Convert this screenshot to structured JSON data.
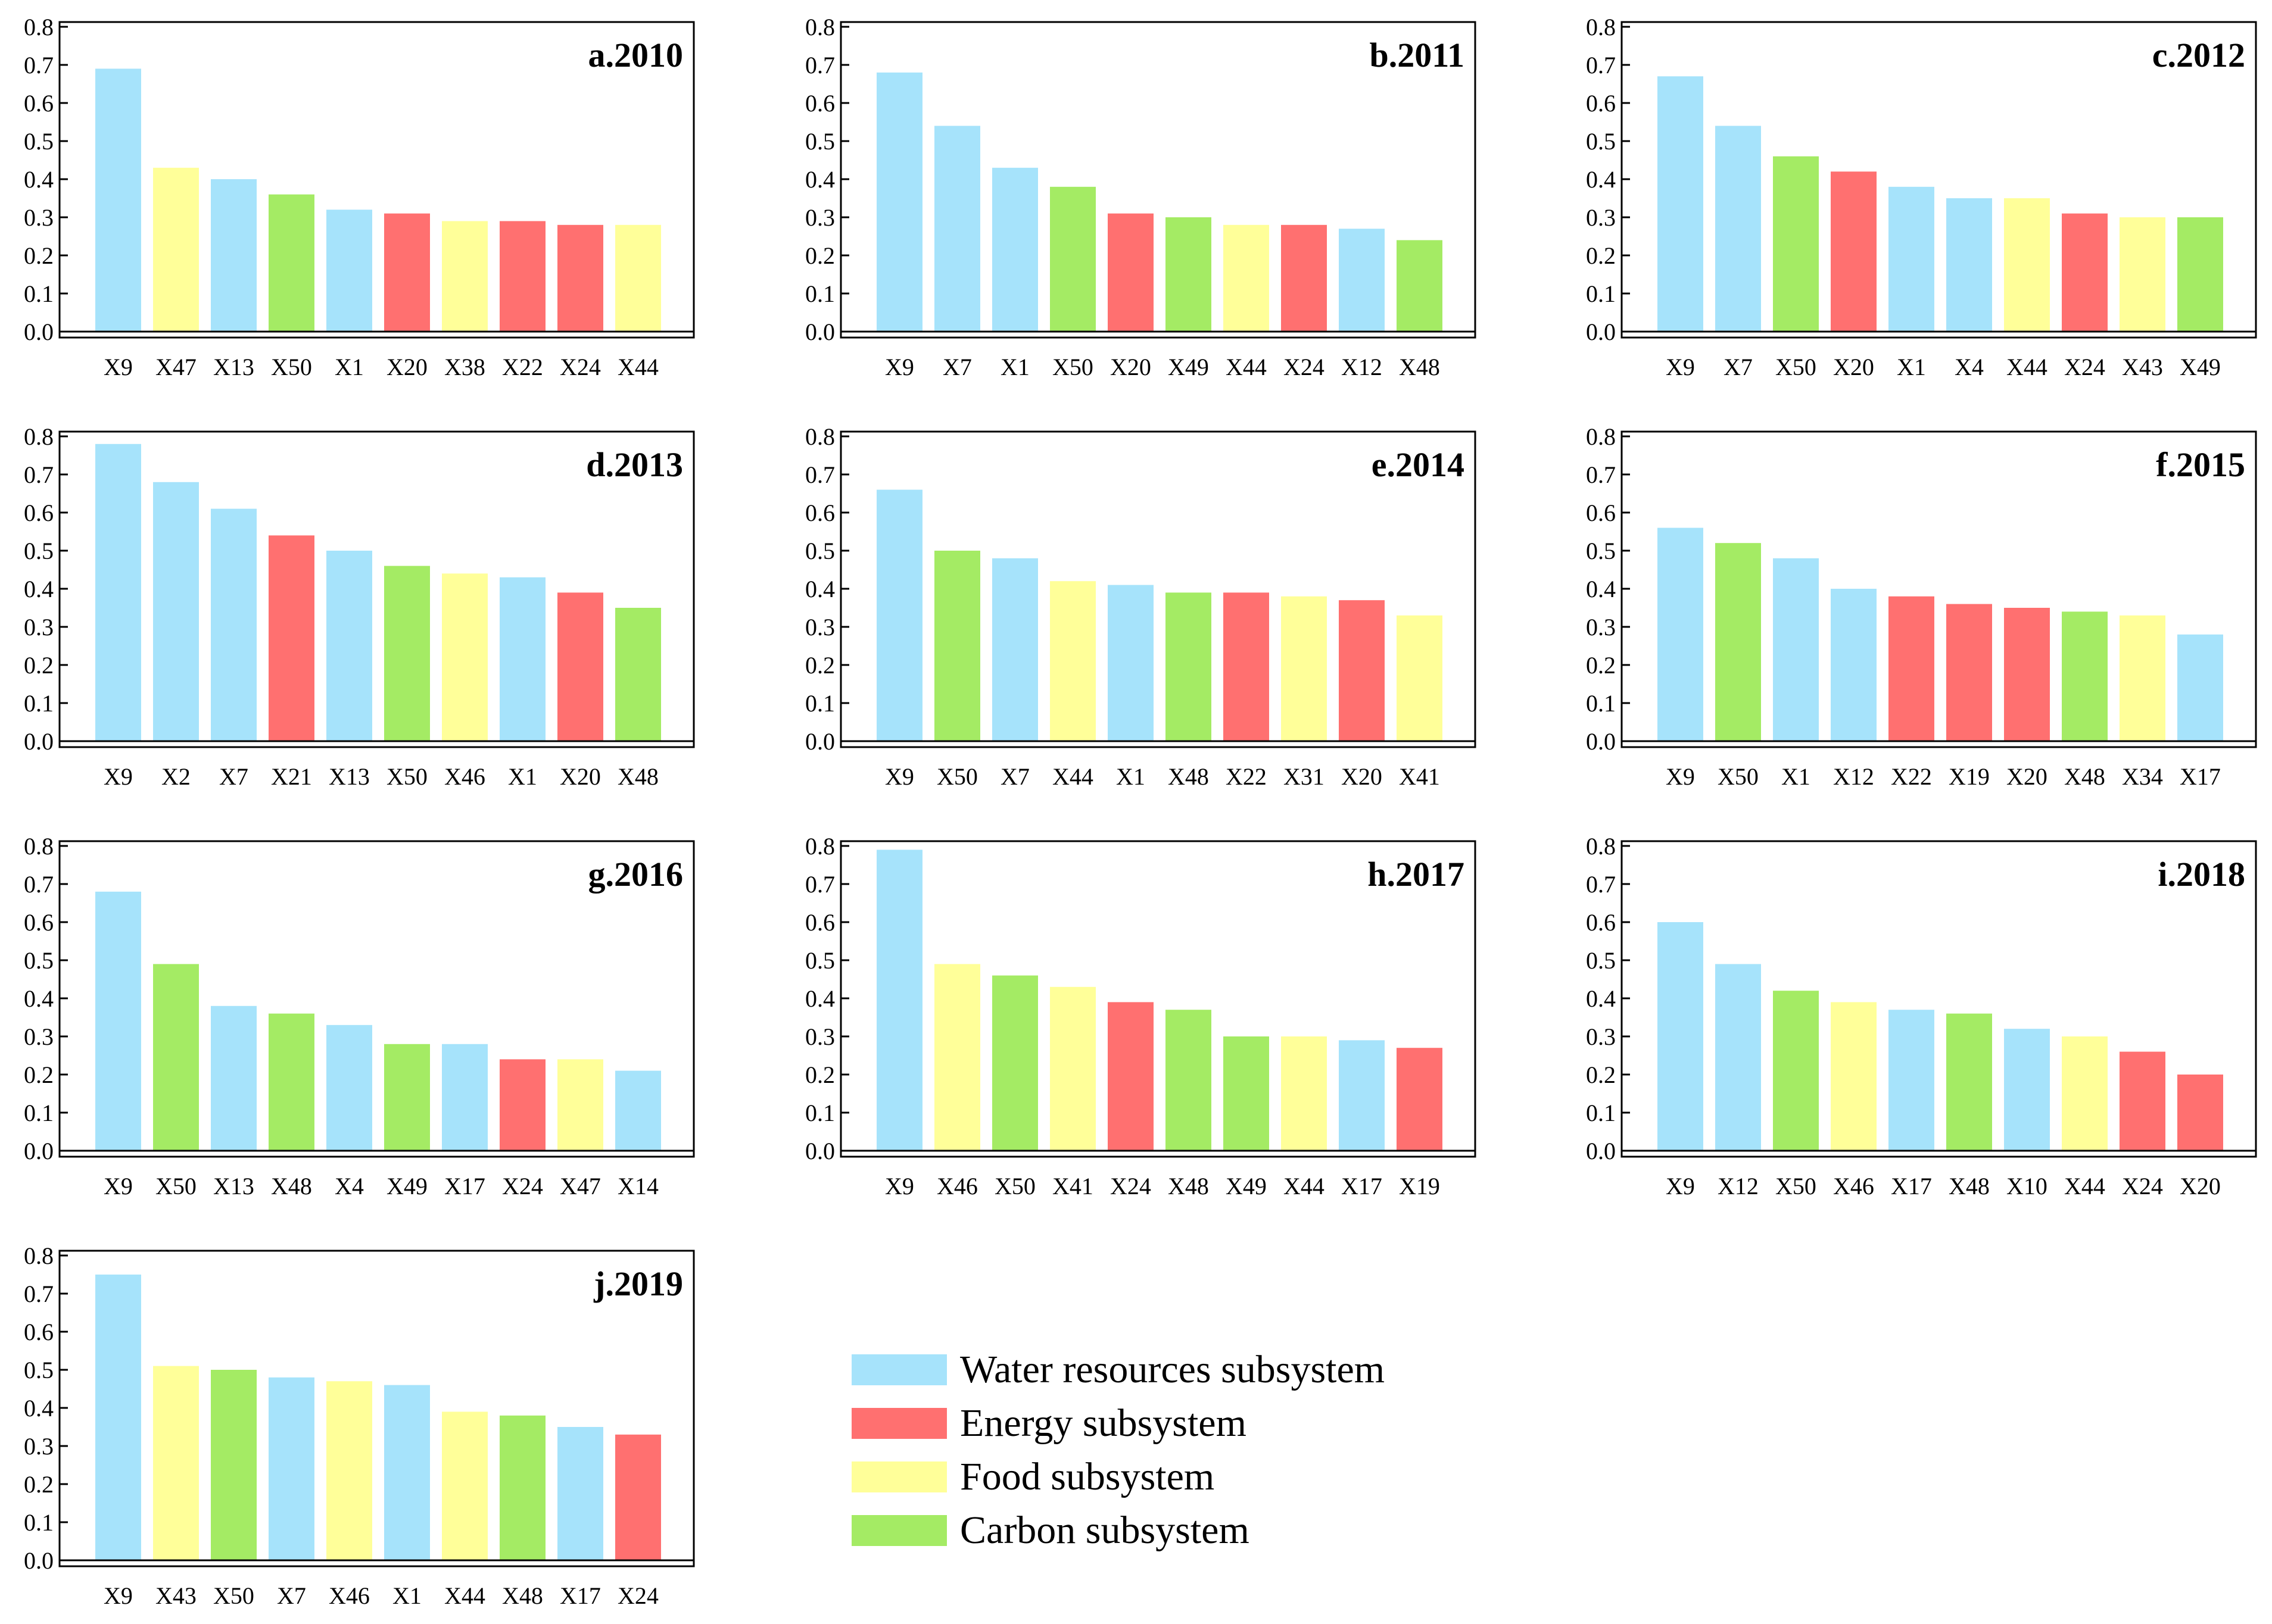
{
  "subsystems": {
    "water": {
      "label": "Water resources subsystem",
      "color": "#A6E3FB"
    },
    "energy": {
      "label": "Energy subsystem",
      "color": "#FF7070"
    },
    "food": {
      "label": "Food subsystem",
      "color": "#FFFF99"
    },
    "carbon": {
      "label": "Carbon subsystem",
      "color": "#A4EB64"
    }
  },
  "legend_order": [
    "water",
    "energy",
    "food",
    "carbon"
  ],
  "y_ticks": [
    "0.0",
    "0.1",
    "0.2",
    "0.3",
    "0.4",
    "0.5",
    "0.6",
    "0.7",
    "0.8"
  ],
  "chart_data": [
    {
      "type": "bar",
      "title": "a.2010",
      "ylim": [
        0,
        0.8
      ],
      "categories": [
        "X9",
        "X47",
        "X13",
        "X50",
        "X1",
        "X20",
        "X38",
        "X22",
        "X24",
        "X44"
      ],
      "values": [
        0.69,
        0.43,
        0.4,
        0.36,
        0.32,
        0.31,
        0.29,
        0.29,
        0.28,
        0.28
      ],
      "groups": [
        "water",
        "food",
        "water",
        "carbon",
        "water",
        "energy",
        "food",
        "energy",
        "energy",
        "food"
      ]
    },
    {
      "type": "bar",
      "title": "b.2011",
      "ylim": [
        0,
        0.8
      ],
      "categories": [
        "X9",
        "X7",
        "X1",
        "X50",
        "X20",
        "X49",
        "X44",
        "X24",
        "X12",
        "X48"
      ],
      "values": [
        0.68,
        0.54,
        0.43,
        0.38,
        0.31,
        0.3,
        0.28,
        0.28,
        0.27,
        0.24
      ],
      "groups": [
        "water",
        "water",
        "water",
        "carbon",
        "energy",
        "carbon",
        "food",
        "energy",
        "water",
        "carbon"
      ]
    },
    {
      "type": "bar",
      "title": "c.2012",
      "ylim": [
        0,
        0.8
      ],
      "categories": [
        "X9",
        "X7",
        "X50",
        "X20",
        "X1",
        "X4",
        "X44",
        "X24",
        "X43",
        "X49"
      ],
      "values": [
        0.67,
        0.54,
        0.46,
        0.42,
        0.38,
        0.35,
        0.35,
        0.31,
        0.3,
        0.3
      ],
      "groups": [
        "water",
        "water",
        "carbon",
        "energy",
        "water",
        "water",
        "food",
        "energy",
        "food",
        "carbon"
      ]
    },
    {
      "type": "bar",
      "title": "d.2013",
      "ylim": [
        0,
        0.8
      ],
      "categories": [
        "X9",
        "X2",
        "X7",
        "X21",
        "X13",
        "X50",
        "X46",
        "X1",
        "X20",
        "X48"
      ],
      "values": [
        0.78,
        0.68,
        0.61,
        0.54,
        0.5,
        0.46,
        0.44,
        0.43,
        0.39,
        0.35
      ],
      "groups": [
        "water",
        "water",
        "water",
        "energy",
        "water",
        "carbon",
        "food",
        "water",
        "energy",
        "carbon"
      ]
    },
    {
      "type": "bar",
      "title": "e.2014",
      "ylim": [
        0,
        0.8
      ],
      "categories": [
        "X9",
        "X50",
        "X7",
        "X44",
        "X1",
        "X48",
        "X22",
        "X31",
        "X20",
        "X41"
      ],
      "values": [
        0.66,
        0.5,
        0.48,
        0.42,
        0.41,
        0.39,
        0.39,
        0.38,
        0.37,
        0.33
      ],
      "groups": [
        "water",
        "carbon",
        "water",
        "food",
        "water",
        "carbon",
        "energy",
        "food",
        "energy",
        "food"
      ]
    },
    {
      "type": "bar",
      "title": "f.2015",
      "ylim": [
        0,
        0.8
      ],
      "categories": [
        "X9",
        "X50",
        "X1",
        "X12",
        "X22",
        "X19",
        "X20",
        "X48",
        "X34",
        "X17"
      ],
      "values": [
        0.56,
        0.52,
        0.48,
        0.4,
        0.38,
        0.36,
        0.35,
        0.34,
        0.33,
        0.28
      ],
      "groups": [
        "water",
        "carbon",
        "water",
        "water",
        "energy",
        "energy",
        "energy",
        "carbon",
        "food",
        "water"
      ]
    },
    {
      "type": "bar",
      "title": "g.2016",
      "ylim": [
        0,
        0.8
      ],
      "categories": [
        "X9",
        "X50",
        "X13",
        "X48",
        "X4",
        "X49",
        "X17",
        "X24",
        "X47",
        "X14"
      ],
      "values": [
        0.68,
        0.49,
        0.38,
        0.36,
        0.33,
        0.28,
        0.28,
        0.24,
        0.24,
        0.21
      ],
      "groups": [
        "water",
        "carbon",
        "water",
        "carbon",
        "water",
        "carbon",
        "water",
        "energy",
        "food",
        "water"
      ]
    },
    {
      "type": "bar",
      "title": "h.2017",
      "ylim": [
        0,
        0.8
      ],
      "categories": [
        "X9",
        "X46",
        "X50",
        "X41",
        "X24",
        "X48",
        "X49",
        "X44",
        "X17",
        "X19"
      ],
      "values": [
        0.79,
        0.49,
        0.46,
        0.43,
        0.39,
        0.37,
        0.3,
        0.3,
        0.29,
        0.27
      ],
      "groups": [
        "water",
        "food",
        "carbon",
        "food",
        "energy",
        "carbon",
        "carbon",
        "food",
        "water",
        "energy"
      ]
    },
    {
      "type": "bar",
      "title": "i.2018",
      "ylim": [
        0,
        0.8
      ],
      "categories": [
        "X9",
        "X12",
        "X50",
        "X46",
        "X17",
        "X48",
        "X10",
        "X44",
        "X24",
        "X20"
      ],
      "values": [
        0.6,
        0.49,
        0.42,
        0.39,
        0.37,
        0.36,
        0.32,
        0.3,
        0.26,
        0.2
      ],
      "groups": [
        "water",
        "water",
        "carbon",
        "food",
        "water",
        "carbon",
        "water",
        "food",
        "energy",
        "energy"
      ]
    },
    {
      "type": "bar",
      "title": "j.2019",
      "ylim": [
        0,
        0.8
      ],
      "categories": [
        "X9",
        "X43",
        "X50",
        "X7",
        "X46",
        "X1",
        "X44",
        "X48",
        "X17",
        "X24"
      ],
      "values": [
        0.75,
        0.51,
        0.5,
        0.48,
        0.47,
        0.46,
        0.39,
        0.38,
        0.35,
        0.33
      ],
      "groups": [
        "water",
        "food",
        "carbon",
        "water",
        "food",
        "water",
        "food",
        "carbon",
        "water",
        "energy"
      ]
    }
  ]
}
